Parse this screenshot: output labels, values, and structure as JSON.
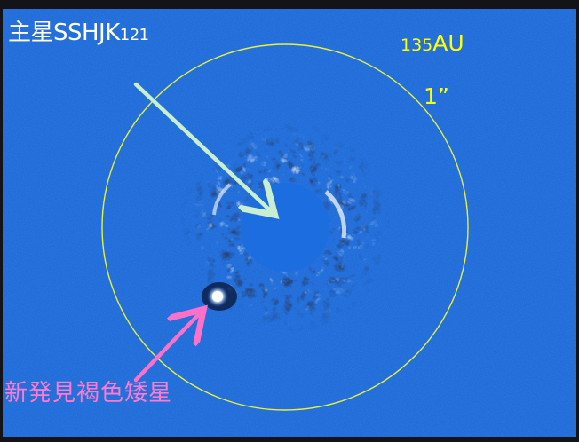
{
  "labels": {
    "host_star_name": "主星SSHJK",
    "host_star_number": "121",
    "distance_number": "135",
    "distance_unit": "AU",
    "angular_scale": "1”",
    "brown_dwarf": "新発見褐色矮星"
  },
  "colors": {
    "background": "#1a66d6",
    "border": "#141418",
    "scale_circle": "#e8f040",
    "host_arrow": "#c8f0d0",
    "dwarf_arrow": "#ff70c8",
    "host_label": "#ffffff",
    "scale_label": "#ffff00",
    "dwarf_label": "#ff7ad0"
  }
}
